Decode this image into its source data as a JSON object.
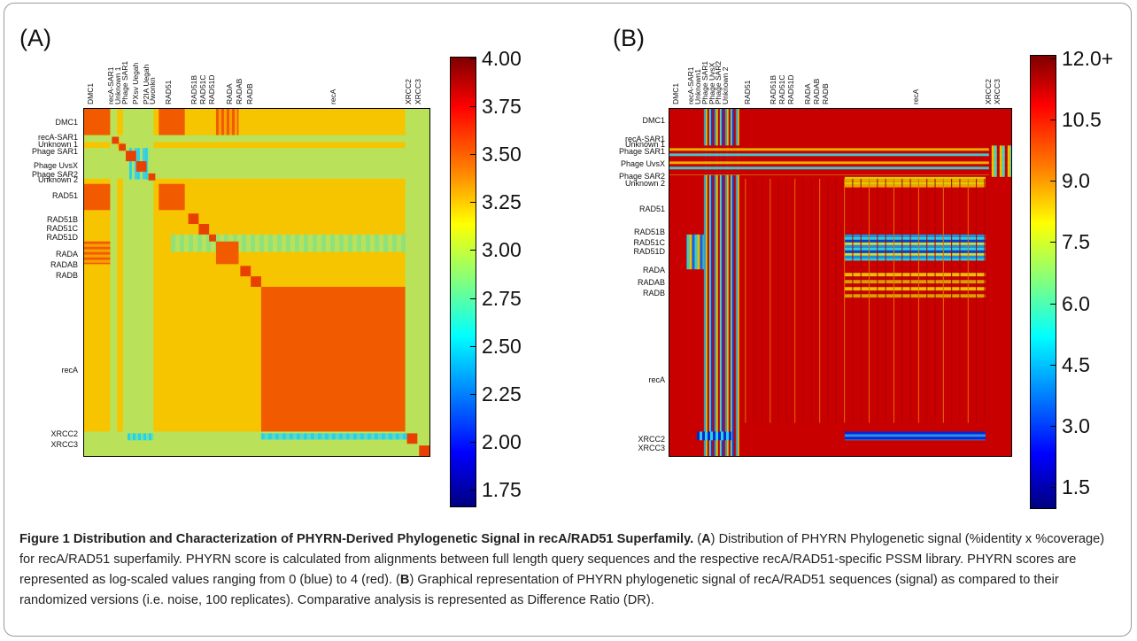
{
  "panels": [
    {
      "label": "(A)",
      "col_labels": [
        "DMC1",
        "recA-SAR1",
        "Unknown 1",
        "Phage SAR1",
        "PXsv Uegah",
        "P2IA Uegah",
        "Uwonkn",
        "RAD51",
        "RAD51B",
        "RAD51C",
        "RAD51D",
        "RADA",
        "RADAB",
        "RADB",
        "recA",
        "XRCC2",
        "XRCC3"
      ],
      "row_labels": [
        "DMC1",
        "recA-SAR1",
        "Unknown 1",
        "Phage SAR1",
        "Phage UvsX",
        "Phage SAR2",
        "Unknown 2",
        "RAD51",
        "RAD51B",
        "RAD51C",
        "RAD51D",
        "RADA",
        "RADAB",
        "RADB",
        "recA",
        "XRCC2",
        "XRCC3"
      ],
      "colorbar": {
        "ticks": [
          "4.00",
          "3.75",
          "3.50",
          "3.25",
          "3.00",
          "2.75",
          "2.50",
          "2.25",
          "2.00",
          "1.75"
        ]
      }
    },
    {
      "label": "(B)",
      "col_labels": [
        "DMC1",
        "recA-SAR1",
        "Unknown1",
        "Phage SAR1",
        "Phage UvsX",
        "Phage SAR2",
        "Unknown 2",
        "RAD51",
        "RAD51B",
        "RAD51C",
        "RAD51D",
        "RADA",
        "RADAB",
        "RADB",
        "recA",
        "XRCC2",
        "XRCC3"
      ],
      "row_labels": [
        "DMC1",
        "recA-SAR1",
        "Unknown 1",
        "Phage SAR1",
        "Phage UvsX",
        "Phage SAR2",
        "Unknown 2",
        "RAD51",
        "RAD51B",
        "RAD51C",
        "RAD51D",
        "RADA",
        "RADAB",
        "RADB",
        "recA",
        "XRCC2",
        "XRCC3"
      ],
      "colorbar": {
        "ticks": [
          "12.0+",
          "10.5",
          "9.0",
          "7.5",
          "6.0",
          "4.5",
          "3.0",
          "1.5"
        ]
      }
    }
  ],
  "colors": {
    "jet_red": "#c00000",
    "jet_orange": "#f25a00",
    "jet_yellow": "#f7c400",
    "jet_green": "#9fe86a",
    "jet_cyan": "#28d2e6",
    "jet_blue": "#0a26d4"
  },
  "caption": {
    "title": "Figure 1 Distribution and Characterization of PHYRN-Derived Phylogenetic Signal in recA/RAD51 Superfamily.",
    "p1": " (",
    "a": "A",
    "p2": ") Distribution of PHYRN Phylogenetic signal (%identity x %coverage) for recA/RAD51 superfamily. PHYRN score is calculated from alignments between full length query sequences and the respective recA/RAD51-specific PSSM library. PHYRN scores are represented as log-scaled values ranging from 0 (blue) to 4 (red). (",
    "b": "B",
    "p3": ") Graphical representation of PHYRN phylogenetic signal of recA/RAD51 sequences (signal) as compared to their randomized versions (i.e. noise, 100 replicates). Comparative analysis is represented as Difference Ratio (DR)."
  }
}
